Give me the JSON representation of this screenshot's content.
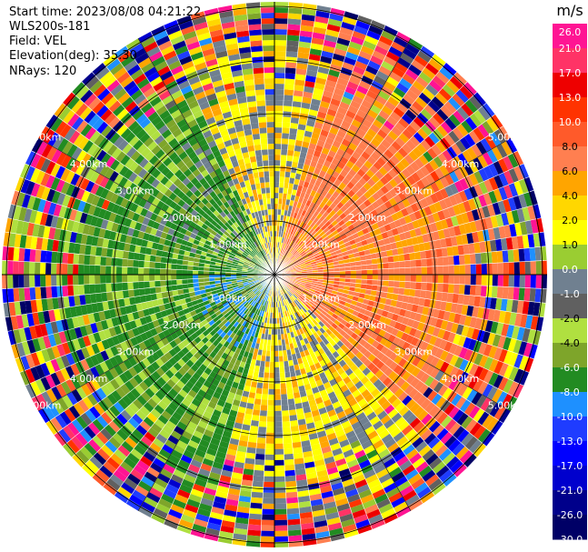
{
  "header": {
    "start_time": "Start time: 2023/08/08 04:21:22",
    "instrument": "WLS200s-181",
    "field": "Field: VEL",
    "elevation": "Elevation(deg): 35.30",
    "nrays": "NRays: 120"
  },
  "rings": {
    "labels": [
      "1.00km",
      "2.00km",
      "3.00km",
      "4.00km",
      "5.00km"
    ],
    "values_km": [
      1,
      2,
      3,
      4,
      5
    ]
  },
  "colorbar": {
    "unit": "m/s",
    "ticks": [
      "26.0",
      "21.0",
      "17.0",
      "13.0",
      "10.0",
      "8.0",
      "6.0",
      "4.0",
      "2.0",
      "1.0",
      "0.0",
      "-1.0",
      "-2.0",
      "-4.0",
      "-6.0",
      "-8.0",
      "-10.0",
      "-13.0",
      "-17.0",
      "-21.0",
      "-26.0",
      "-30.0"
    ],
    "colors": [
      "#ff1493",
      "#ff3366",
      "#ee0000",
      "#ff3300",
      "#ff5a2a",
      "#ff7f50",
      "#ffa500",
      "#ffd700",
      "#ffff00",
      "#9acd32",
      "#708090",
      "#606060",
      "#b0e040",
      "#7ea52a",
      "#228b22",
      "#1e90ff",
      "#1f3cff",
      "#0000ff",
      "#0000cd",
      "#00008b",
      "#000066"
    ]
  }
}
